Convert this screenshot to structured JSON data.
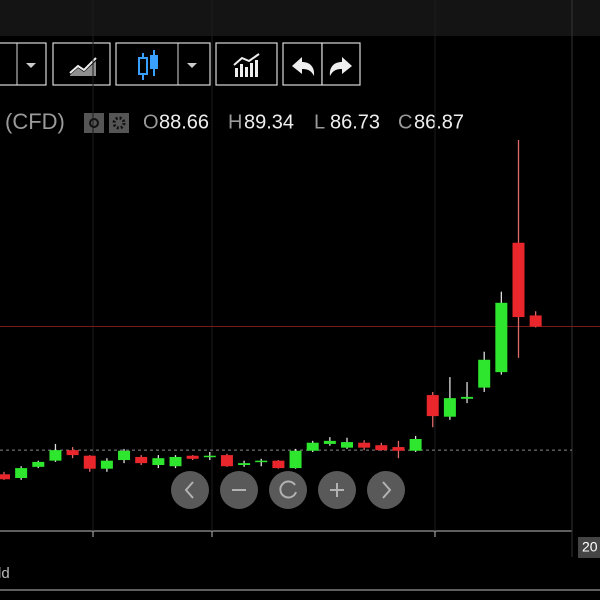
{
  "chart_data": {
    "type": "candlestick",
    "title": "(CFD)",
    "ohlc_labels": [
      "O",
      "H",
      "L",
      "C"
    ],
    "open": [
      63.0,
      62.4,
      64.2,
      65.2,
      66.9,
      66.0,
      63.9,
      65.3,
      65.8,
      64.5,
      64.3,
      66.0,
      65.8,
      66.1,
      64.5,
      65.0,
      65.2,
      64.0,
      66.8,
      67.9,
      67.3,
      68.1,
      67.7,
      67.4,
      66.8,
      75.8,
      72.3,
      75.2,
      77.0,
      79.5,
      100.4,
      88.66
    ],
    "high": [
      63.4,
      64.3,
      65.2,
      67.9,
      67.4,
      66.1,
      65.6,
      67.1,
      66.1,
      66.1,
      66.1,
      66.1,
      66.6,
      66.3,
      65.2,
      65.5,
      65.3,
      67.1,
      68.4,
      69.0,
      68.9,
      68.5,
      68.1,
      68.4,
      69.2,
      76.3,
      78.7,
      77.9,
      82.8,
      92.5,
      117.0,
      89.34
    ],
    "low": [
      62.1,
      62.1,
      64.0,
      65.0,
      65.6,
      63.4,
      63.4,
      64.8,
      64.5,
      64.0,
      64.0,
      65.3,
      65.3,
      64.2,
      64.2,
      64.3,
      63.9,
      63.9,
      66.6,
      67.6,
      67.1,
      66.9,
      66.8,
      65.6,
      66.6,
      70.6,
      71.8,
      74.5,
      76.3,
      79.1,
      81.8,
      86.73
    ],
    "close": [
      62.2,
      64.0,
      65.0,
      66.9,
      66.1,
      63.9,
      65.2,
      66.8,
      64.8,
      65.6,
      65.8,
      65.5,
      66.0,
      64.3,
      64.8,
      65.2,
      64.0,
      66.8,
      68.1,
      68.4,
      68.2,
      67.3,
      66.9,
      66.8,
      68.7,
      72.4,
      75.3,
      75.5,
      81.5,
      90.7,
      88.4,
      86.87
    ],
    "up_color": "#2ee62e",
    "down_color": "#e8262b",
    "reference_level": 66.9,
    "ylim": [
      54,
      117
    ],
    "x_axis_label": "20",
    "footer": "ld"
  }
}
